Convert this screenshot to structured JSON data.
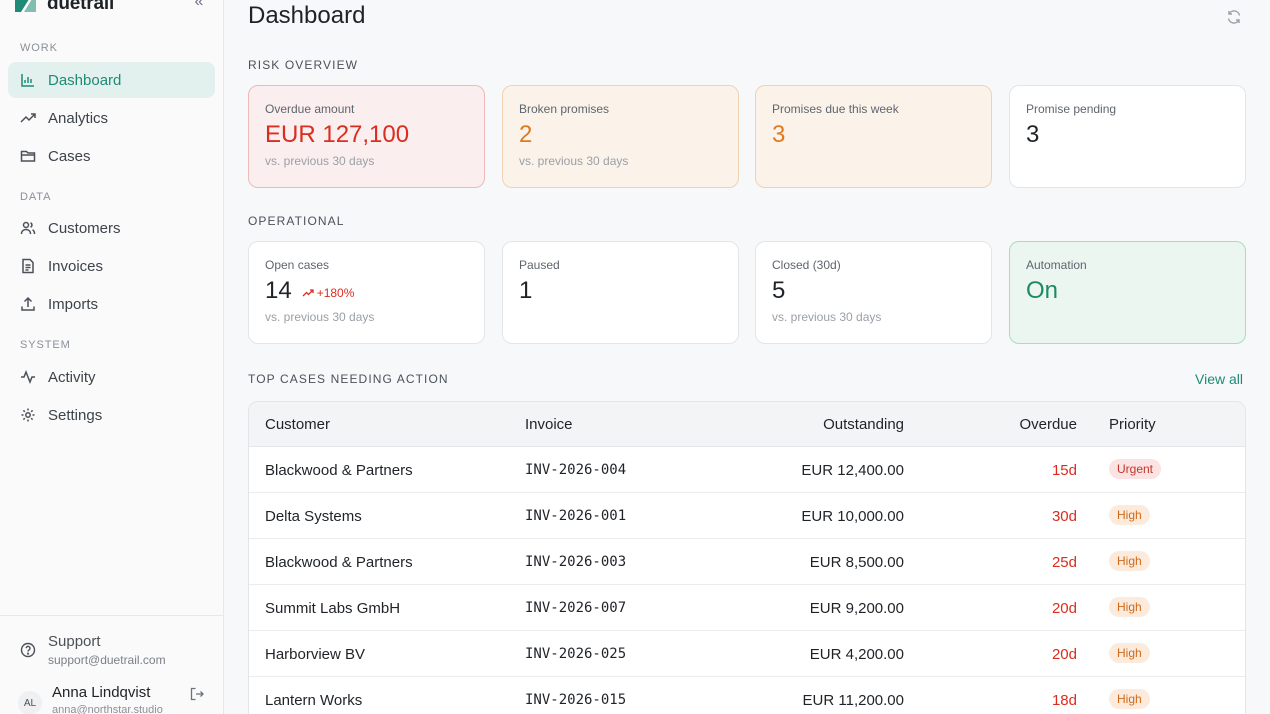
{
  "app": {
    "name": "duetrail"
  },
  "sidebar": {
    "sections": [
      {
        "label": "WORK",
        "items": [
          {
            "label": "Dashboard",
            "icon": "bar-chart-icon",
            "active": true
          },
          {
            "label": "Analytics",
            "icon": "trending-up-icon"
          },
          {
            "label": "Cases",
            "icon": "folder-icon"
          }
        ]
      },
      {
        "label": "DATA",
        "items": [
          {
            "label": "Customers",
            "icon": "users-icon"
          },
          {
            "label": "Invoices",
            "icon": "file-icon"
          },
          {
            "label": "Imports",
            "icon": "upload-icon"
          }
        ]
      },
      {
        "label": "SYSTEM",
        "items": [
          {
            "label": "Activity",
            "icon": "activity-icon"
          },
          {
            "label": "Settings",
            "icon": "gear-icon"
          }
        ]
      }
    ],
    "support": {
      "title": "Support",
      "email": "support@duetrail.com"
    },
    "user": {
      "initials": "AL",
      "name": "Anna Lindqvist",
      "email": "anna@northstar.studio"
    }
  },
  "header": {
    "title": "Dashboard"
  },
  "risk": {
    "label": "RISK OVERVIEW",
    "cards": [
      {
        "label": "Overdue amount",
        "value": "EUR 127,100",
        "sub": "vs. previous 30 days"
      },
      {
        "label": "Broken promises",
        "value": "2",
        "sub": "vs. previous 30 days"
      },
      {
        "label": "Promises due this week",
        "value": "3"
      },
      {
        "label": "Promise pending",
        "value": "3"
      }
    ]
  },
  "operational": {
    "label": "OPERATIONAL",
    "cards": [
      {
        "label": "Open cases",
        "value": "14",
        "trend": "+180%",
        "sub": "vs. previous 30 days"
      },
      {
        "label": "Paused",
        "value": "1"
      },
      {
        "label": "Closed (30d)",
        "value": "5",
        "sub": "vs. previous 30 days"
      },
      {
        "label": "Automation",
        "value": "On"
      }
    ]
  },
  "cases": {
    "label": "TOP CASES NEEDING ACTION",
    "view_all": "View all",
    "columns": {
      "customer": "Customer",
      "invoice": "Invoice",
      "outstanding": "Outstanding",
      "overdue": "Overdue",
      "priority": "Priority"
    },
    "rows": [
      {
        "customer": "Blackwood & Partners",
        "invoice": "INV-2026-004",
        "outstanding": "EUR 12,400.00",
        "overdue": "15d",
        "priority": "Urgent"
      },
      {
        "customer": "Delta Systems",
        "invoice": "INV-2026-001",
        "outstanding": "EUR 10,000.00",
        "overdue": "30d",
        "priority": "High"
      },
      {
        "customer": "Blackwood & Partners",
        "invoice": "INV-2026-003",
        "outstanding": "EUR 8,500.00",
        "overdue": "25d",
        "priority": "High"
      },
      {
        "customer": "Summit Labs GmbH",
        "invoice": "INV-2026-007",
        "outstanding": "EUR 9,200.00",
        "overdue": "20d",
        "priority": "High"
      },
      {
        "customer": "Harborview BV",
        "invoice": "INV-2026-025",
        "outstanding": "EUR 4,200.00",
        "overdue": "20d",
        "priority": "High"
      },
      {
        "customer": "Lantern Works",
        "invoice": "INV-2026-015",
        "outstanding": "EUR 11,200.00",
        "overdue": "18d",
        "priority": "High"
      }
    ]
  },
  "colors": {
    "accent": "#1f8a76",
    "danger": "#d92d20",
    "warning": "#e07a1f",
    "success": "#1e8a60"
  }
}
